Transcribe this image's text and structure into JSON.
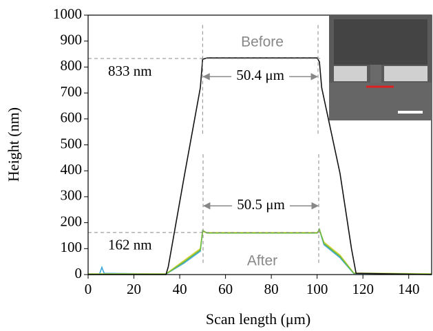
{
  "chart_data": {
    "type": "line",
    "xlabel": "Scan length (μm)",
    "ylabel": "Height (nm)",
    "xlim": [
      0,
      150
    ],
    "xticks": [
      0,
      20,
      40,
      60,
      80,
      100,
      120,
      140
    ],
    "ylim": [
      0,
      1000
    ],
    "yticks": [
      0,
      100,
      200,
      300,
      400,
      500,
      600,
      700,
      800,
      900,
      1000
    ],
    "series": [
      {
        "color": "#111111",
        "x": [
          0,
          34,
          35,
          42,
          49,
          50,
          52,
          100,
          101,
          102,
          110,
          115,
          117,
          150
        ],
        "values": [
          0,
          0,
          30,
          380,
          720,
          830,
          835,
          835,
          820,
          720,
          390,
          100,
          5,
          0
        ]
      },
      {
        "color": "#6dbb3c",
        "x": [
          0,
          34,
          42,
          49,
          50,
          52,
          100,
          101,
          103,
          110,
          116,
          150
        ],
        "values": [
          2,
          2,
          50,
          95,
          170,
          160,
          160,
          175,
          120,
          70,
          5,
          2
        ]
      },
      {
        "color": "#d9d23a",
        "x": [
          0,
          34,
          42,
          49,
          50,
          52,
          100,
          101,
          103,
          110,
          116,
          150
        ],
        "values": [
          3,
          3,
          55,
          100,
          165,
          162,
          162,
          170,
          125,
          75,
          6,
          3
        ]
      },
      {
        "color": "#3ca6d9",
        "x": [
          0,
          5,
          6,
          7,
          34,
          42,
          49,
          50,
          52,
          100,
          101,
          103,
          110,
          116,
          150
        ],
        "values": [
          2,
          2,
          28,
          5,
          2,
          45,
          90,
          168,
          160,
          160,
          172,
          115,
          65,
          4,
          2
        ]
      }
    ],
    "hlines": [
      {
        "value": 833,
        "label": "833 nm"
      },
      {
        "value": 162,
        "label": "162 nm"
      }
    ],
    "dimensions": [
      {
        "x": [
          50,
          100.4
        ],
        "y": 763,
        "label": "50.4 μm"
      },
      {
        "x": [
          50.2,
          100.7
        ],
        "y": 265,
        "label": "50.5 μm"
      }
    ],
    "annotations": [
      "Before",
      "After"
    ]
  }
}
